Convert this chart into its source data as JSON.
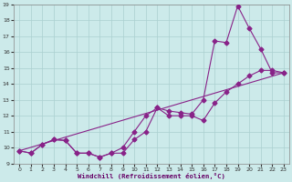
{
  "xlabel": "Windchill (Refroidissement éolien,°C)",
  "background_color": "#cceaea",
  "line_color": "#882288",
  "xlim": [
    -0.5,
    23.5
  ],
  "ylim": [
    9,
    19
  ],
  "xticks": [
    0,
    1,
    2,
    3,
    4,
    5,
    6,
    7,
    8,
    9,
    10,
    11,
    12,
    13,
    14,
    15,
    16,
    17,
    18,
    19,
    20,
    21,
    22,
    23
  ],
  "yticks": [
    9,
    10,
    11,
    12,
    13,
    14,
    15,
    16,
    17,
    18,
    19
  ],
  "line1_x": [
    0,
    1,
    2,
    3,
    4,
    5,
    6,
    7,
    8,
    9,
    10,
    11,
    12,
    13,
    14,
    15,
    16,
    17,
    18,
    19,
    20,
    21,
    22,
    23
  ],
  "line1_y": [
    9.8,
    9.65,
    10.2,
    10.5,
    10.45,
    9.65,
    9.65,
    9.4,
    9.65,
    9.65,
    10.5,
    11.0,
    12.5,
    12.0,
    12.0,
    12.0,
    11.7,
    12.8,
    13.5,
    14.0,
    14.5,
    14.85,
    14.85,
    14.7
  ],
  "line2_x": [
    0,
    1,
    2,
    3,
    4,
    5,
    6,
    7,
    8,
    9,
    10,
    11,
    12,
    13,
    14,
    15,
    16,
    17,
    18,
    19,
    20,
    21,
    22,
    23
  ],
  "line2_y": [
    9.8,
    9.65,
    10.2,
    10.5,
    10.45,
    9.65,
    9.65,
    9.4,
    9.65,
    10.0,
    11.0,
    12.0,
    12.5,
    12.3,
    12.2,
    12.1,
    13.0,
    16.7,
    16.6,
    18.9,
    17.5,
    16.2,
    14.7,
    14.7
  ],
  "line3_x": [
    0,
    23
  ],
  "line3_y": [
    9.8,
    14.7
  ],
  "grid_color": "#aad0d0",
  "marker": "D",
  "markersize": 2.5
}
